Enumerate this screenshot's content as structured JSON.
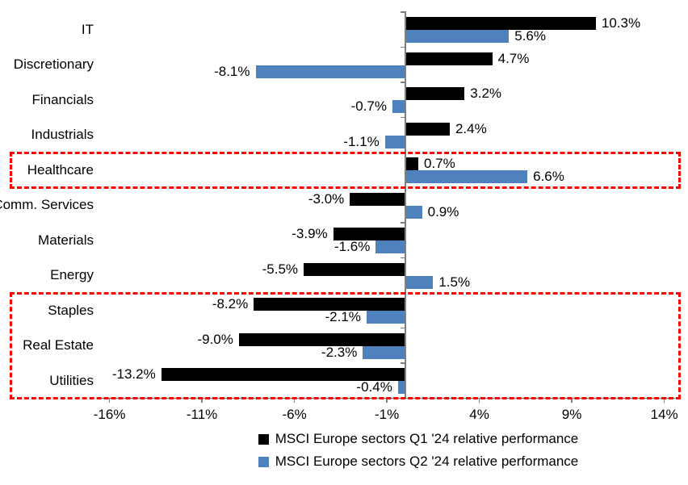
{
  "chart_data": {
    "type": "bar",
    "orientation": "horizontal",
    "title": "",
    "categories": [
      "IT",
      "Discretionary",
      "Financials",
      "Industrials",
      "Healthcare",
      "Comm. Services",
      "Materials",
      "Energy",
      "Staples",
      "Real Estate",
      "Utilities"
    ],
    "series": [
      {
        "name": "MSCI Europe sectors Q1 '24 relative performance",
        "color": "#000000",
        "values": [
          10.3,
          4.7,
          3.2,
          2.4,
          0.7,
          -3.0,
          -3.9,
          -5.5,
          -8.2,
          -9.0,
          -13.2
        ]
      },
      {
        "name": "MSCI Europe sectors Q2 '24 relative performance",
        "color": "#4F81BD",
        "values": [
          5.6,
          -8.1,
          -0.7,
          -1.1,
          6.6,
          0.9,
          -1.6,
          1.5,
          -2.1,
          -2.3,
          -0.4
        ]
      }
    ],
    "x_ticks": [
      {
        "label": "-16%",
        "value": -16
      },
      {
        "label": "-11%",
        "value": -11
      },
      {
        "label": "-6%",
        "value": -6
      },
      {
        "label": "-1%",
        "value": -1
      },
      {
        "label": "4%",
        "value": 4
      },
      {
        "label": "9%",
        "value": 9
      },
      {
        "label": "14%",
        "value": 14
      }
    ],
    "xlim": [
      -16.7,
      15.2
    ],
    "data_labels": "outside-end, one decimal place with % sign",
    "legend_position": "bottom",
    "grid": false,
    "axis_color": "#808080",
    "text_color": "#000000"
  },
  "annotations": {
    "highlight_boxes": [
      {
        "name": "healthcare-highlight",
        "color": "#FF0000",
        "style": "dashed",
        "row_start": 4,
        "row_end": 4
      },
      {
        "name": "defensives-highlight",
        "color": "#FF0000",
        "style": "dashed",
        "row_start": 8,
        "row_end": 10
      }
    ]
  }
}
